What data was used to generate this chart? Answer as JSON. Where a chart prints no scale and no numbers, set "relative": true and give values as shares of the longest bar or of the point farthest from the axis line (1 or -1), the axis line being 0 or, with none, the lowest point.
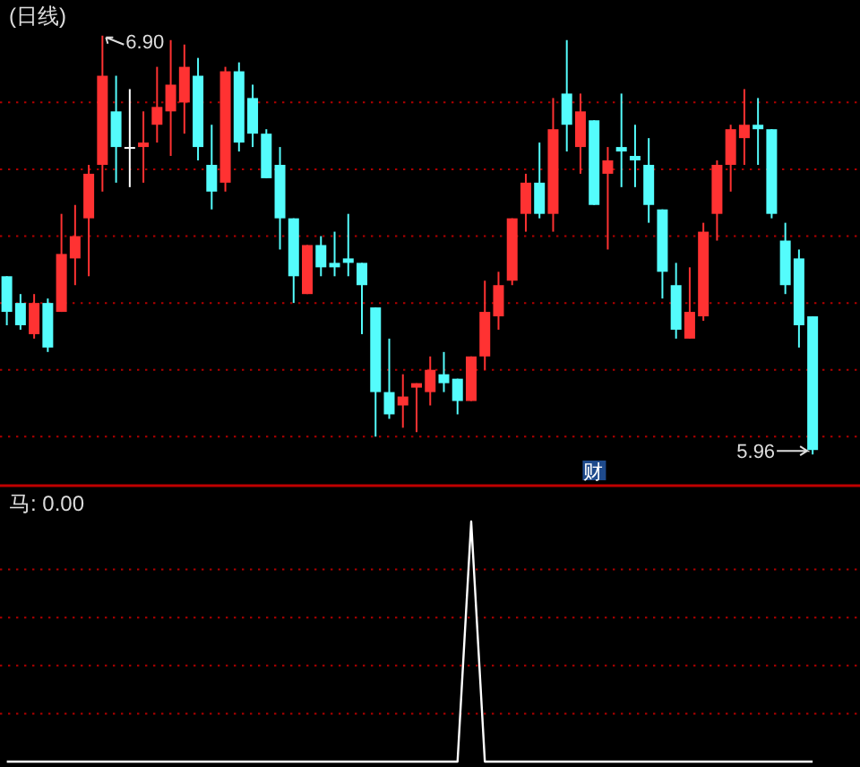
{
  "chart_data": [
    {
      "type": "candlestick",
      "title": "(日线)",
      "categories": [
        null,
        null,
        null,
        null,
        null,
        null,
        null,
        null,
        null,
        null,
        null,
        null,
        null,
        null,
        null,
        null,
        null,
        null,
        null,
        null,
        null,
        null,
        null,
        null,
        null,
        null,
        null,
        null,
        null,
        null,
        null,
        null,
        null,
        null,
        null,
        null,
        null,
        null,
        null,
        null,
        null,
        null,
        null,
        null,
        null,
        null,
        null,
        null,
        null,
        null,
        null,
        null,
        null,
        null,
        null,
        null,
        null,
        null,
        null,
        null
      ],
      "ohlc": [
        [
          6.36,
          6.36,
          6.25,
          6.28
        ],
        [
          6.3,
          6.32,
          6.24,
          6.25
        ],
        [
          6.23,
          6.32,
          6.22,
          6.3
        ],
        [
          6.3,
          6.31,
          6.19,
          6.2
        ],
        [
          6.28,
          6.5,
          6.28,
          6.41
        ],
        [
          6.4,
          6.52,
          6.34,
          6.45
        ],
        [
          6.49,
          6.61,
          6.36,
          6.59
        ],
        [
          6.61,
          6.9,
          6.55,
          6.81
        ],
        [
          6.73,
          6.81,
          6.57,
          6.65
        ],
        [
          6.65,
          6.78,
          6.56,
          6.65
        ],
        [
          6.65,
          6.73,
          6.57,
          6.66
        ],
        [
          6.7,
          6.83,
          6.66,
          6.74
        ],
        [
          6.73,
          6.89,
          6.63,
          6.79
        ],
        [
          6.75,
          6.88,
          6.68,
          6.83
        ],
        [
          6.81,
          6.85,
          6.62,
          6.65
        ],
        [
          6.61,
          6.7,
          6.51,
          6.55
        ],
        [
          6.57,
          6.83,
          6.55,
          6.82
        ],
        [
          6.82,
          6.84,
          6.64,
          6.66
        ],
        [
          6.76,
          6.79,
          6.65,
          6.68
        ],
        [
          6.68,
          6.69,
          6.58,
          6.58
        ],
        [
          6.61,
          6.65,
          6.42,
          6.49
        ],
        [
          6.49,
          6.49,
          6.3,
          6.36
        ],
        [
          6.32,
          6.43,
          6.32,
          6.43
        ],
        [
          6.43,
          6.45,
          6.36,
          6.38
        ],
        [
          6.39,
          6.46,
          6.36,
          6.38
        ],
        [
          6.4,
          6.5,
          6.36,
          6.39
        ],
        [
          6.39,
          6.39,
          6.23,
          6.34
        ],
        [
          6.29,
          6.29,
          6.0,
          6.1
        ],
        [
          6.1,
          6.22,
          6.04,
          6.05
        ],
        [
          6.07,
          6.14,
          6.02,
          6.09
        ],
        [
          6.11,
          6.12,
          6.01,
          6.12
        ],
        [
          6.1,
          6.18,
          6.07,
          6.15
        ],
        [
          6.14,
          6.19,
          6.1,
          6.12
        ],
        [
          6.13,
          6.13,
          6.05,
          6.08
        ],
        [
          6.08,
          6.18,
          6.08,
          6.18
        ],
        [
          6.18,
          6.35,
          6.15,
          6.28
        ],
        [
          6.27,
          6.37,
          6.24,
          6.34
        ],
        [
          6.35,
          6.49,
          6.34,
          6.49
        ],
        [
          6.5,
          6.59,
          6.46,
          6.57
        ],
        [
          6.57,
          6.66,
          6.49,
          6.5
        ],
        [
          6.5,
          6.76,
          6.46,
          6.69
        ],
        [
          6.77,
          6.89,
          6.64,
          6.7
        ],
        [
          6.65,
          6.77,
          6.59,
          6.73
        ],
        [
          6.71,
          6.71,
          6.52,
          6.52
        ],
        [
          6.59,
          6.65,
          6.42,
          6.62
        ],
        [
          6.65,
          6.77,
          6.56,
          6.64
        ],
        [
          6.63,
          6.7,
          6.56,
          6.62
        ],
        [
          6.61,
          6.67,
          6.48,
          6.52
        ],
        [
          6.51,
          6.51,
          6.31,
          6.37
        ],
        [
          6.34,
          6.39,
          6.22,
          6.24
        ],
        [
          6.22,
          6.38,
          6.22,
          6.28
        ],
        [
          6.27,
          6.48,
          6.26,
          6.46
        ],
        [
          6.5,
          6.62,
          6.44,
          6.61
        ],
        [
          6.61,
          6.7,
          6.55,
          6.69
        ],
        [
          6.67,
          6.78,
          6.61,
          6.7
        ],
        [
          6.7,
          6.76,
          6.61,
          6.69
        ],
        [
          6.69,
          6.69,
          6.49,
          6.5
        ],
        [
          6.44,
          6.48,
          6.32,
          6.34
        ],
        [
          6.4,
          6.42,
          6.2,
          6.25
        ],
        [
          6.27,
          6.27,
          5.96,
          5.97
        ]
      ],
      "colors": [
        "#54fcfc",
        "#54fcfc",
        "#ff3232",
        "#54fcfc",
        "#ff3232",
        "#ff3232",
        "#ff3232",
        "#ff3232",
        "#54fcfc",
        "#ffffff",
        "#ff3232",
        "#ff3232",
        "#ff3232",
        "#ff3232",
        "#54fcfc",
        "#54fcfc",
        "#ff3232",
        "#54fcfc",
        "#54fcfc",
        "#54fcfc",
        "#54fcfc",
        "#54fcfc",
        "#ff3232",
        "#54fcfc",
        "#54fcfc",
        "#54fcfc",
        "#54fcfc",
        "#54fcfc",
        "#54fcfc",
        "#ff3232",
        "#ff3232",
        "#ff3232",
        "#54fcfc",
        "#54fcfc",
        "#ff3232",
        "#ff3232",
        "#ff3232",
        "#ff3232",
        "#ff3232",
        "#54fcfc",
        "#ff3232",
        "#54fcfc",
        "#ff3232",
        "#54fcfc",
        "#ff3232",
        "#54fcfc",
        "#54fcfc",
        "#54fcfc",
        "#54fcfc",
        "#54fcfc",
        "#ff3232",
        "#ff3232",
        "#ff3232",
        "#ff3232",
        "#ff3232",
        "#54fcfc",
        "#54fcfc",
        "#54fcfc",
        "#54fcfc",
        "#54fcfc"
      ],
      "ylim": [
        5.89,
        6.98
      ],
      "yticks": [
        {
          "value": 6.0,
          "label": null
        },
        {
          "value": 6.15,
          "label": null
        },
        {
          "value": 6.3,
          "label": null
        },
        {
          "value": 6.45,
          "label": null
        },
        {
          "value": 6.6,
          "label": null
        },
        {
          "value": 6.75,
          "label": null
        }
      ],
      "grid": "y",
      "annotations": [
        "6.90",
        "5.96",
        "财"
      ]
    },
    {
      "type": "line",
      "title": "马: 0.00",
      "categories": [
        null,
        null,
        null,
        null,
        null,
        null,
        null,
        null,
        null,
        null,
        null,
        null,
        null,
        null,
        null,
        null,
        null,
        null,
        null,
        null,
        null,
        null,
        null,
        null,
        null,
        null,
        null,
        null,
        null,
        null,
        null,
        null,
        null,
        null,
        null,
        null,
        null,
        null,
        null,
        null,
        null,
        null,
        null,
        null,
        null,
        null,
        null,
        null,
        null,
        null,
        null,
        null,
        null,
        null,
        null,
        null,
        null,
        null,
        null,
        null
      ],
      "values": [
        0,
        0,
        0,
        0,
        0,
        0,
        0,
        0,
        0,
        0,
        0,
        0,
        0,
        0,
        0,
        0,
        0,
        0,
        0,
        0,
        0,
        0,
        0,
        0,
        0,
        0,
        0,
        0,
        0,
        0,
        0,
        0,
        0,
        0,
        1,
        0,
        0,
        0,
        0,
        0,
        0,
        0,
        0,
        0,
        0,
        0,
        0,
        0,
        0,
        0,
        0,
        0,
        0,
        0,
        0,
        0,
        0,
        0,
        0,
        0
      ],
      "color": "#ffffff",
      "relative": true,
      "ref_lines": [
        {
          "axis": "y",
          "value": 0.2,
          "color": "#b00000",
          "line_style": "dotted"
        },
        {
          "axis": "y",
          "value": 0.4,
          "color": "#b00000",
          "line_style": "dotted"
        },
        {
          "axis": "y",
          "value": 0.6,
          "color": "#b00000",
          "line_style": "dotted"
        },
        {
          "axis": "y",
          "value": 0.8,
          "color": "#b00000",
          "line_style": "dotted"
        }
      ]
    }
  ]
}
